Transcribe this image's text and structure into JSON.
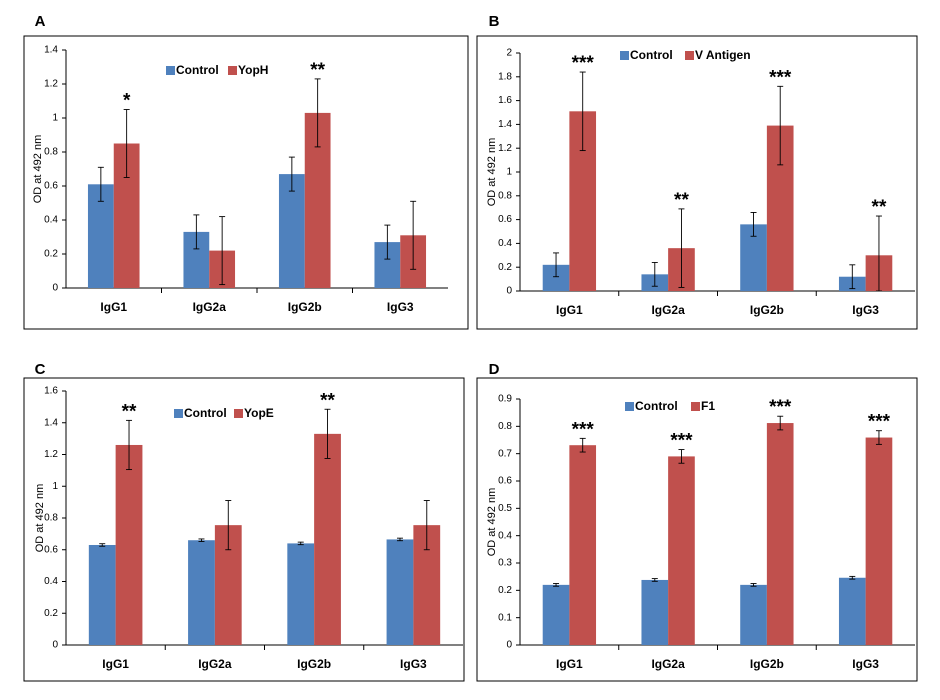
{
  "colors": {
    "control": "#4f81bd",
    "treatment": "#c0504d"
  },
  "chart_data": [
    {
      "panel": "A",
      "type": "bar",
      "ylabel": "OD at 492 nm",
      "ylim": [
        0,
        1.4
      ],
      "yticks": [
        "0",
        "0.2",
        "0.4",
        "0.6",
        "0.8",
        "1",
        "1.2",
        "1.4"
      ],
      "categories": [
        "IgG1",
        "IgG2a",
        "IgG2b",
        "IgG3"
      ],
      "legend_position": "top",
      "series": [
        {
          "name": "Control",
          "color": "#4f81bd",
          "values": [
            0.61,
            0.33,
            0.67,
            0.27
          ],
          "errors": [
            0.1,
            0.1,
            0.1,
            0.1
          ]
        },
        {
          "name": "YopH",
          "color": "#c0504d",
          "values": [
            0.85,
            0.22,
            1.03,
            0.31
          ],
          "errors": [
            0.2,
            0.2,
            0.2,
            0.2
          ]
        }
      ],
      "significance": [
        "*",
        "",
        "**",
        ""
      ]
    },
    {
      "panel": "B",
      "type": "bar",
      "ylabel": "OD at 492 nm",
      "ylim": [
        0,
        2
      ],
      "yticks": [
        "0",
        "0.2",
        "0.4",
        "0.6",
        "0.8",
        "1",
        "1.2",
        "1.4",
        "1.6",
        "1.8",
        "2"
      ],
      "categories": [
        "IgG1",
        "IgG2a",
        "IgG2b",
        "IgG3"
      ],
      "legend_position": "top-left",
      "series": [
        {
          "name": "Control",
          "color": "#4f81bd",
          "values": [
            0.22,
            0.14,
            0.56,
            0.12
          ],
          "errors": [
            0.1,
            0.1,
            0.1,
            0.1
          ]
        },
        {
          "name": "V Antigen",
          "color": "#c0504d",
          "values": [
            1.51,
            0.36,
            1.39,
            0.3
          ],
          "errors": [
            0.33,
            0.33,
            0.33,
            0.33
          ]
        }
      ],
      "significance": [
        "***",
        "**",
        "***",
        "**"
      ]
    },
    {
      "panel": "C",
      "type": "bar",
      "ylabel": "OD at 492 nm",
      "ylim": [
        0,
        1.6
      ],
      "yticks": [
        "0",
        "0.2",
        "0.4",
        "0.6",
        "0.8",
        "1",
        "1.2",
        "1.4",
        "1.6"
      ],
      "categories": [
        "IgG1",
        "IgG2a",
        "IgG2b",
        "IgG3"
      ],
      "legend_position": "top",
      "series": [
        {
          "name": "Control",
          "color": "#4f81bd",
          "values": [
            0.63,
            0.66,
            0.64,
            0.665
          ],
          "errors": [
            0.008,
            0.008,
            0.008,
            0.008
          ]
        },
        {
          "name": "YopE",
          "color": "#c0504d",
          "values": [
            1.26,
            0.755,
            1.33,
            0.755
          ],
          "errors": [
            0.155,
            0.155,
            0.155,
            0.155
          ]
        }
      ],
      "significance": [
        "**",
        "",
        "**",
        ""
      ]
    },
    {
      "panel": "D",
      "type": "bar",
      "ylabel": "OD at 492 nm",
      "ylim": [
        0,
        0.9
      ],
      "yticks": [
        "0",
        "0.1",
        "0.2",
        "0.3",
        "0.4",
        "0.5",
        "0.6",
        "0.7",
        "0.8",
        "0.9"
      ],
      "categories": [
        "IgG1",
        "IgG2a",
        "IgG2b",
        "IgG3"
      ],
      "legend_position": "top-left",
      "series": [
        {
          "name": "Control",
          "color": "#4f81bd",
          "values": [
            0.22,
            0.238,
            0.22,
            0.246
          ],
          "errors": [
            0.005,
            0.005,
            0.005,
            0.005
          ]
        },
        {
          "name": "F1",
          "color": "#c0504d",
          "values": [
            0.731,
            0.69,
            0.812,
            0.759
          ],
          "errors": [
            0.025,
            0.025,
            0.025,
            0.025
          ]
        }
      ],
      "significance": [
        "***",
        "***",
        "***",
        "***"
      ]
    }
  ]
}
